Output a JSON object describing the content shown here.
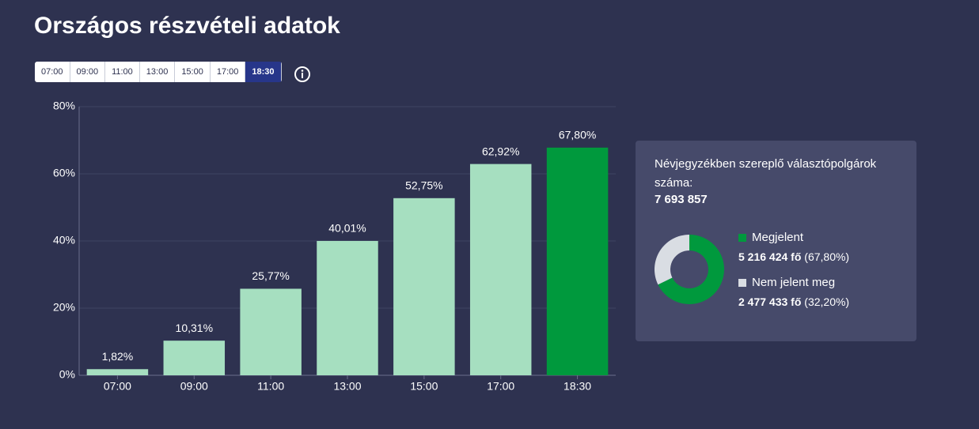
{
  "title": "Országos részvételi adatok",
  "time_buttons": {
    "labels": [
      "07:00",
      "09:00",
      "11:00",
      "13:00",
      "15:00",
      "17:00",
      "18:30"
    ],
    "selected": 6
  },
  "chart_data": [
    {
      "type": "bar",
      "categories": [
        "07:00",
        "09:00",
        "11:00",
        "13:00",
        "15:00",
        "17:00",
        "18:30"
      ],
      "values": [
        1.82,
        10.31,
        25.77,
        40.01,
        52.75,
        62.92,
        67.8
      ],
      "value_labels": [
        "1,82%",
        "10,31%",
        "25,77%",
        "40,01%",
        "52,75%",
        "62,92%",
        "67,80%"
      ],
      "colors": [
        "#a6dfc0",
        "#a6dfc0",
        "#a6dfc0",
        "#a6dfc0",
        "#a6dfc0",
        "#a6dfc0",
        "#00993d"
      ],
      "ylim": [
        0,
        80
      ],
      "yticks": [
        {
          "value": 0,
          "label": "0%"
        },
        {
          "value": 20,
          "label": "20%"
        },
        {
          "value": 40,
          "label": "40%"
        },
        {
          "value": 60,
          "label": "60%"
        },
        {
          "value": 80,
          "label": "80%"
        }
      ],
      "grid": true
    },
    {
      "type": "donut",
      "categories": [
        "Megjelent",
        "Nem jelent meg"
      ],
      "values": [
        5216424,
        2477433
      ],
      "value_labels": [
        "5 216 424 fő",
        "2 477 433 fő"
      ],
      "share_labels": [
        "(67,80%)",
        "(32,20%)"
      ],
      "colors": [
        "#00993d",
        "#d9dde3"
      ]
    }
  ],
  "panel": {
    "label": "Névjegyzékben szereplő választópolgárok száma:",
    "total": "7 693 857"
  }
}
